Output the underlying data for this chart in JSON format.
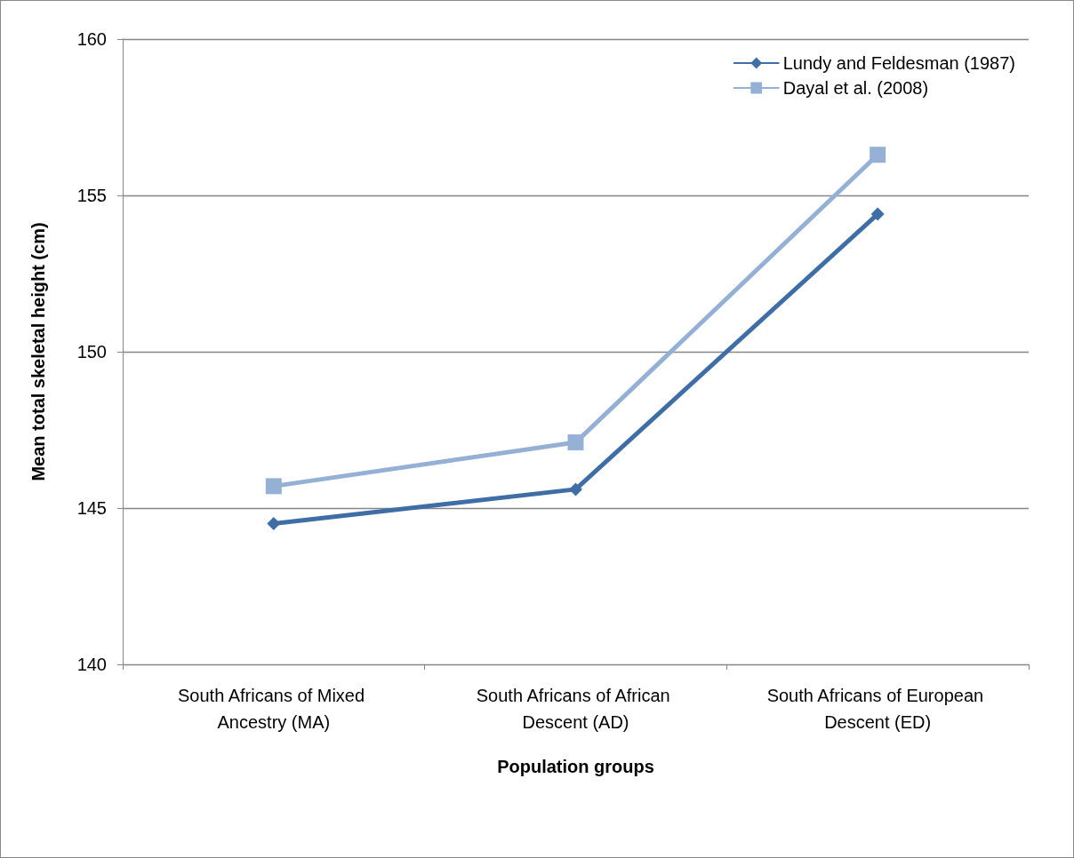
{
  "chart_data": {
    "type": "line",
    "xlabel": "Population groups",
    "ylabel": "Mean total skeletal height (cm)",
    "categories": [
      "South Africans of Mixed Ancestry (MA)",
      "South Africans of African Descent (AD)",
      "South Africans of European Descent (ED)"
    ],
    "series": [
      {
        "name": "Lundy and Feldesman (1987)",
        "color": "#3f6ea6",
        "marker": "diamond",
        "values": [
          144.5,
          145.6,
          154.4
        ]
      },
      {
        "name": "Dayal et al. (2008)",
        "color": "#95b0d5",
        "marker": "square",
        "values": [
          145.7,
          147.1,
          156.3
        ]
      }
    ],
    "ylim": [
      140,
      160
    ],
    "yticks": [
      140,
      145,
      150,
      155,
      160
    ],
    "grid": "y",
    "legend": "top right",
    "line_style": "solid"
  }
}
